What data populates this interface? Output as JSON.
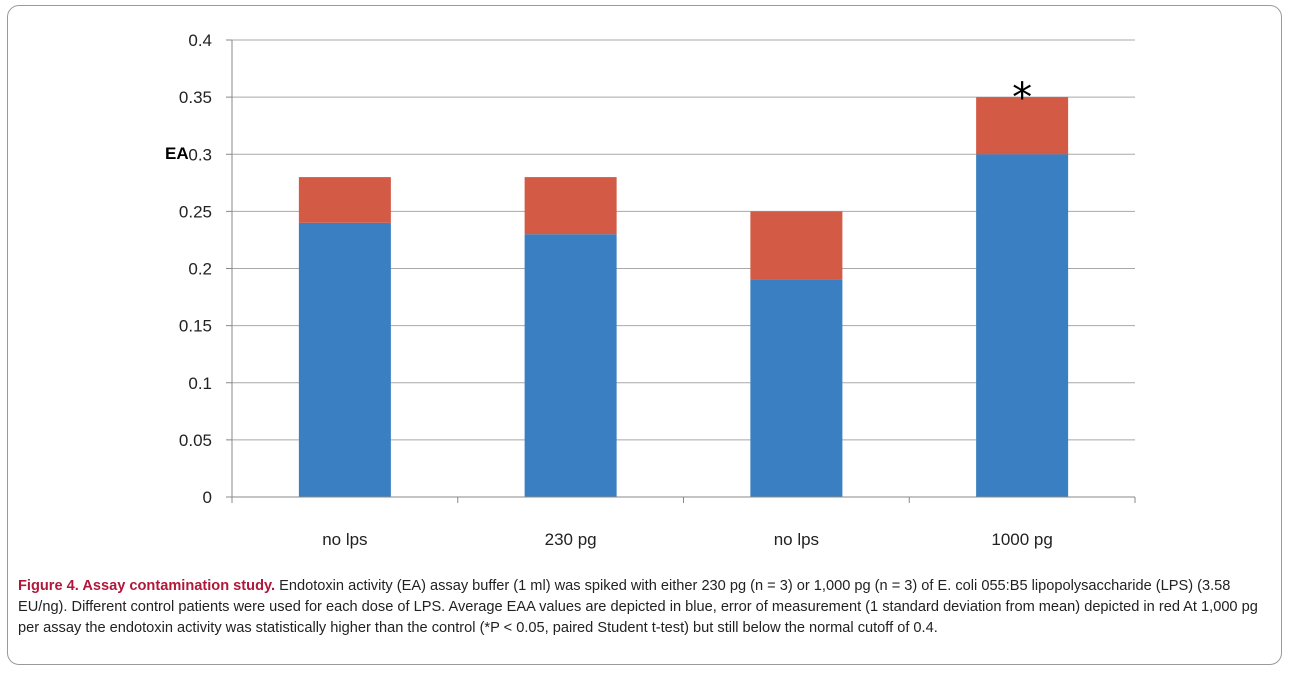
{
  "chart_data": {
    "type": "bar",
    "stacked": true,
    "categories": [
      "no lps",
      "230 pg",
      "no lps",
      "1000 pg"
    ],
    "series": [
      {
        "values": [
          0.24,
          0.23,
          0.19,
          0.3
        ],
        "color": "#3a7fc1"
      },
      {
        "values": [
          0.04,
          0.05,
          0.06,
          0.05
        ],
        "color": "#d35a44"
      }
    ],
    "ylabel": "EA",
    "ylim": [
      0,
      0.4
    ],
    "yticks": [
      "0",
      "0.05",
      "0.1",
      "0.15",
      "0.2",
      "0.25",
      "0.3",
      "0.35",
      "0.4"
    ],
    "grid": true,
    "annotations": [
      {
        "category_index": 3,
        "text": "*"
      }
    ]
  },
  "caption": {
    "title": "Figure 4. Assay contamination study.",
    "body": " Endotoxin activity (EA) assay buffer (1 ml) was spiked with either 230 pg (n = 3) or 1,000 pg (n = 3) of E. coli 055:B5 lipopolysaccharide (LPS) (3.58 EU/ng). Different control patients were used for each dose of LPS. Average EAA values are depicted in blue, error of measurement (1 standard deviation from mean) depicted in red At 1,000 pg per assay the endotoxin activity was statistically higher than the control (*P < 0.05, paired Student t-test) but still below the normal cutoff of 0.4."
  }
}
